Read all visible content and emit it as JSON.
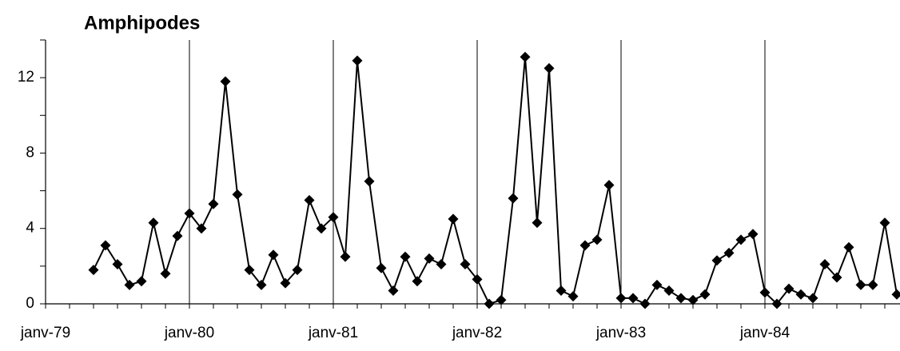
{
  "chart_data": {
    "type": "line",
    "title": "Amphipodes",
    "categories": [
      "janv-79",
      null,
      null,
      null,
      null,
      null,
      null,
      null,
      null,
      null,
      null,
      null,
      "janv-80",
      null,
      null,
      null,
      null,
      null,
      null,
      null,
      null,
      null,
      null,
      null,
      "janv-81",
      null,
      null,
      null,
      null,
      null,
      null,
      null,
      null,
      null,
      null,
      null,
      "janv-82",
      null,
      null,
      null,
      null,
      null,
      null,
      null,
      null,
      null,
      null,
      null,
      "janv-83",
      null,
      null,
      null,
      null,
      null,
      null,
      null,
      null,
      null,
      null,
      null,
      "janv-84",
      null,
      null,
      null,
      null,
      null,
      null,
      null,
      null,
      null,
      null,
      null
    ],
    "series": [
      {
        "name": "Amphipodes",
        "color": "#000000",
        "marker": "diamond",
        "values": [
          null,
          null,
          null,
          null,
          1.8,
          3.1,
          2.1,
          1.0,
          1.2,
          4.3,
          1.6,
          3.6,
          4.8,
          4.0,
          5.3,
          11.8,
          5.8,
          1.8,
          1.0,
          2.6,
          1.1,
          1.8,
          5.5,
          4.0,
          4.6,
          2.5,
          12.9,
          6.5,
          1.9,
          0.7,
          2.5,
          1.2,
          2.4,
          2.1,
          4.5,
          2.1,
          1.3,
          0.0,
          0.2,
          5.6,
          13.1,
          4.3,
          12.5,
          0.7,
          0.4,
          3.1,
          3.4,
          6.3,
          0.3,
          0.3,
          0.0,
          1.0,
          0.7,
          0.3,
          0.2,
          0.5,
          2.3,
          2.7,
          3.4,
          3.7,
          0.6,
          0.0,
          0.8,
          0.5,
          0.3,
          2.1,
          1.4,
          3.0,
          1.0,
          1.0,
          4.3,
          0.5
        ]
      }
    ],
    "ylim": [
      0,
      14
    ],
    "yticks": [
      0,
      4,
      8,
      12
    ],
    "yminorticks": [
      2,
      6,
      10,
      14
    ],
    "xgrid": true,
    "grid": false,
    "legend": false
  }
}
